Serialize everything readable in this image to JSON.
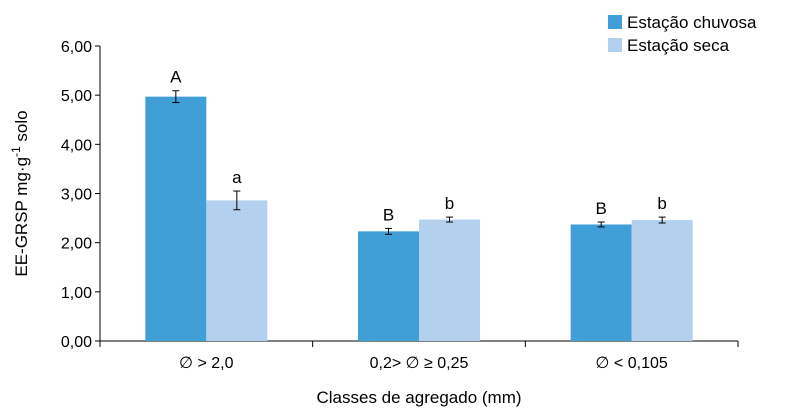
{
  "chart_data": {
    "type": "bar",
    "categories": [
      "∅ > 2,0",
      "0,2> ∅ ≥ 0,25",
      "∅ < 0,105"
    ],
    "series": [
      {
        "name": "Estação chuvosa",
        "color": "#419fd8",
        "values": [
          4.97,
          2.23,
          2.37
        ],
        "errors": [
          0.12,
          0.06,
          0.05
        ],
        "letters": [
          "A",
          "B",
          "B"
        ]
      },
      {
        "name": "Estação seca",
        "color": "#b3d0ef",
        "values": [
          2.86,
          2.47,
          2.46
        ],
        "errors": [
          0.19,
          0.05,
          0.06
        ],
        "letters": [
          "a",
          "b",
          "b"
        ]
      }
    ],
    "xlabel": "Classes de agregado (mm)",
    "ylabel": "EE-GRSP mg·g⁻¹ solo",
    "ylim": [
      0,
      6
    ],
    "yticks": [
      0,
      1,
      2,
      3,
      4,
      5,
      6
    ],
    "ytick_labels": [
      "0,00",
      "1,00",
      "2,00",
      "3,00",
      "4,00",
      "5,00",
      "6,00"
    ],
    "legend_position": "top-right",
    "grid": false
  }
}
